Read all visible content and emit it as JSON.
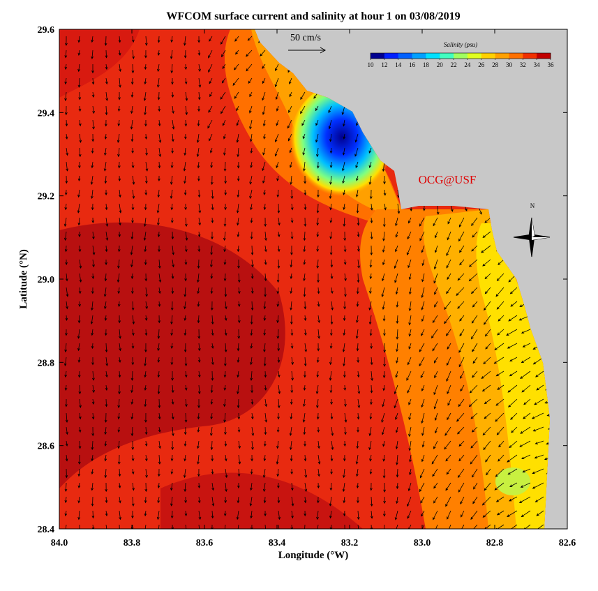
{
  "title": "WFCOM surface current and salinity at hour 1 on 03/08/2019",
  "x_axis": {
    "label": "Longitude (°W)",
    "lim": [
      84.0,
      82.6
    ],
    "ticks": [
      {
        "value": 84.0,
        "label": "84.0"
      },
      {
        "value": 83.8,
        "label": "83.8"
      },
      {
        "value": 83.6,
        "label": "83.6"
      },
      {
        "value": 83.4,
        "label": "83.4"
      },
      {
        "value": 83.2,
        "label": "83.2"
      },
      {
        "value": 83.0,
        "label": "83.0"
      },
      {
        "value": 82.8,
        "label": "82.8"
      },
      {
        "value": 82.6,
        "label": "82.6"
      }
    ]
  },
  "y_axis": {
    "label": "Latitude (°N)",
    "lim": [
      28.4,
      29.6
    ],
    "ticks": [
      {
        "value": 28.4,
        "label": "28.4"
      },
      28.6,
      28.8,
      {
        "value": 29.0,
        "label": "29.0"
      },
      29.2,
      29.4,
      29.6
    ]
  },
  "colorbar": {
    "title": "Salinity (psu)",
    "lim": [
      10,
      36
    ],
    "ticks": [
      10,
      12,
      14,
      16,
      18,
      20,
      22,
      24,
      26,
      28,
      30,
      32,
      34,
      36
    ],
    "colors": [
      "#00008f",
      "#0020ff",
      "#0060ff",
      "#00a0ff",
      "#00e0ff",
      "#40ffc0",
      "#a0ff60",
      "#e0ff20",
      "#ffd000",
      "#ffa000",
      "#ff7000",
      "#f03000",
      "#c00000"
    ]
  },
  "scale_label": "50 cm/s",
  "credit": "OCG@USF",
  "compass": "N"
}
